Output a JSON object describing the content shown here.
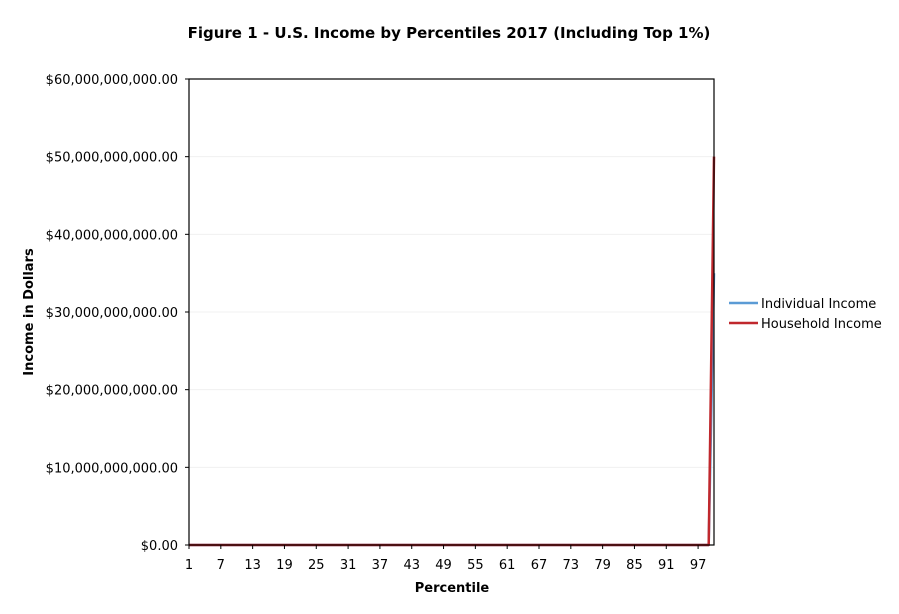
{
  "chart_data": {
    "type": "line",
    "title": "Figure 1 - U.S. Income by Percentiles 2017 (Including Top 1%)",
    "xlabel": "Percentile",
    "ylabel": "Income in Dollars",
    "x_tick_labels": [
      "1",
      "7",
      "13",
      "19",
      "25",
      "31",
      "37",
      "43",
      "49",
      "55",
      "61",
      "67",
      "73",
      "79",
      "85",
      "91",
      "97"
    ],
    "y_tick_labels": [
      "$0.00",
      "$10,000,000,000.00",
      "$20,000,000,000.00",
      "$30,000,000,000.00",
      "$40,000,000,000.00",
      "$50,000,000,000.00",
      "$60,000,000,000.00"
    ],
    "x_range": [
      1,
      100
    ],
    "ylim": [
      0,
      60000000000
    ],
    "y_ticks": [
      0,
      10000000000,
      20000000000,
      30000000000,
      40000000000,
      50000000000,
      60000000000
    ],
    "x": [
      1,
      2,
      3,
      4,
      5,
      6,
      7,
      8,
      9,
      10,
      11,
      12,
      13,
      14,
      15,
      16,
      17,
      18,
      19,
      20,
      21,
      22,
      23,
      24,
      25,
      26,
      27,
      28,
      29,
      30,
      31,
      32,
      33,
      34,
      35,
      36,
      37,
      38,
      39,
      40,
      41,
      42,
      43,
      44,
      45,
      46,
      47,
      48,
      49,
      50,
      51,
      52,
      53,
      54,
      55,
      56,
      57,
      58,
      59,
      60,
      61,
      62,
      63,
      64,
      65,
      66,
      67,
      68,
      69,
      70,
      71,
      72,
      73,
      74,
      75,
      76,
      77,
      78,
      79,
      80,
      81,
      82,
      83,
      84,
      85,
      86,
      87,
      88,
      89,
      90,
      91,
      92,
      93,
      94,
      95,
      96,
      97,
      98,
      99,
      100
    ],
    "series": [
      {
        "name": "Individual Income",
        "color": "#5B9BD5",
        "values": [
          0,
          0,
          0,
          0,
          0,
          0,
          0,
          0,
          0,
          0,
          0,
          0,
          0,
          0,
          0,
          0,
          0,
          0,
          0,
          0,
          0,
          0,
          0,
          0,
          0,
          0,
          0,
          0,
          0,
          0,
          0,
          0,
          0,
          0,
          0,
          0,
          0,
          0,
          0,
          0,
          0,
          0,
          0,
          0,
          0,
          0,
          0,
          0,
          0,
          0,
          0,
          0,
          0,
          0,
          0,
          0,
          0,
          0,
          0,
          0,
          0,
          0,
          0,
          0,
          0,
          0,
          0,
          0,
          0,
          0,
          0,
          0,
          0,
          0,
          0,
          0,
          0,
          0,
          0,
          0,
          0,
          0,
          0,
          0,
          0,
          0,
          0,
          0,
          0,
          0,
          0,
          0,
          0,
          0,
          0,
          0,
          0,
          0,
          0,
          35000000000
        ]
      },
      {
        "name": "Household Income",
        "color": "#C0282D",
        "values": [
          0,
          0,
          0,
          0,
          0,
          0,
          0,
          0,
          0,
          0,
          0,
          0,
          0,
          0,
          0,
          0,
          0,
          0,
          0,
          0,
          0,
          0,
          0,
          0,
          0,
          0,
          0,
          0,
          0,
          0,
          0,
          0,
          0,
          0,
          0,
          0,
          0,
          0,
          0,
          0,
          0,
          0,
          0,
          0,
          0,
          0,
          0,
          0,
          0,
          0,
          0,
          0,
          0,
          0,
          0,
          0,
          0,
          0,
          0,
          0,
          0,
          0,
          0,
          0,
          0,
          0,
          0,
          0,
          0,
          0,
          0,
          0,
          0,
          0,
          0,
          0,
          0,
          0,
          0,
          0,
          0,
          0,
          0,
          0,
          0,
          0,
          0,
          0,
          0,
          0,
          0,
          0,
          0,
          0,
          0,
          0,
          0,
          0,
          0,
          50000000000
        ]
      }
    ],
    "grid": true,
    "legend": "right"
  }
}
